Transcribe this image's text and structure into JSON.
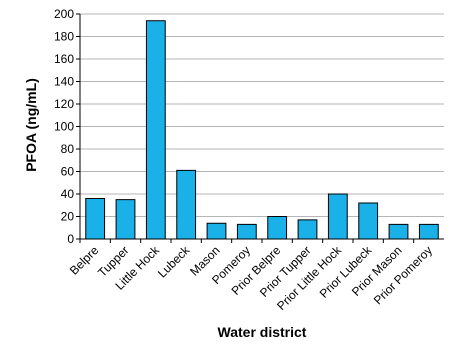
{
  "chart_data": {
    "type": "bar",
    "categories": [
      "Belpre",
      "Tupper",
      "Little Hock",
      "Lubeck",
      "Mason",
      "Pomeroy",
      "Prior Belpre",
      "Prior Tupper",
      "Prior Little Hock",
      "Prior Lubeck",
      "Prior Mason",
      "Prior Pomeroy"
    ],
    "values": [
      36,
      35,
      194,
      61,
      14,
      13,
      20,
      17,
      40,
      32,
      13,
      13
    ],
    "xlabel": "Water district",
    "ylabel": "PFOA (ng/mL)",
    "ylim": [
      0,
      200
    ],
    "yticks": [
      0,
      20,
      40,
      60,
      80,
      100,
      120,
      140,
      160,
      180,
      200
    ],
    "grid": true,
    "bar_color": "#1ab0e8"
  }
}
